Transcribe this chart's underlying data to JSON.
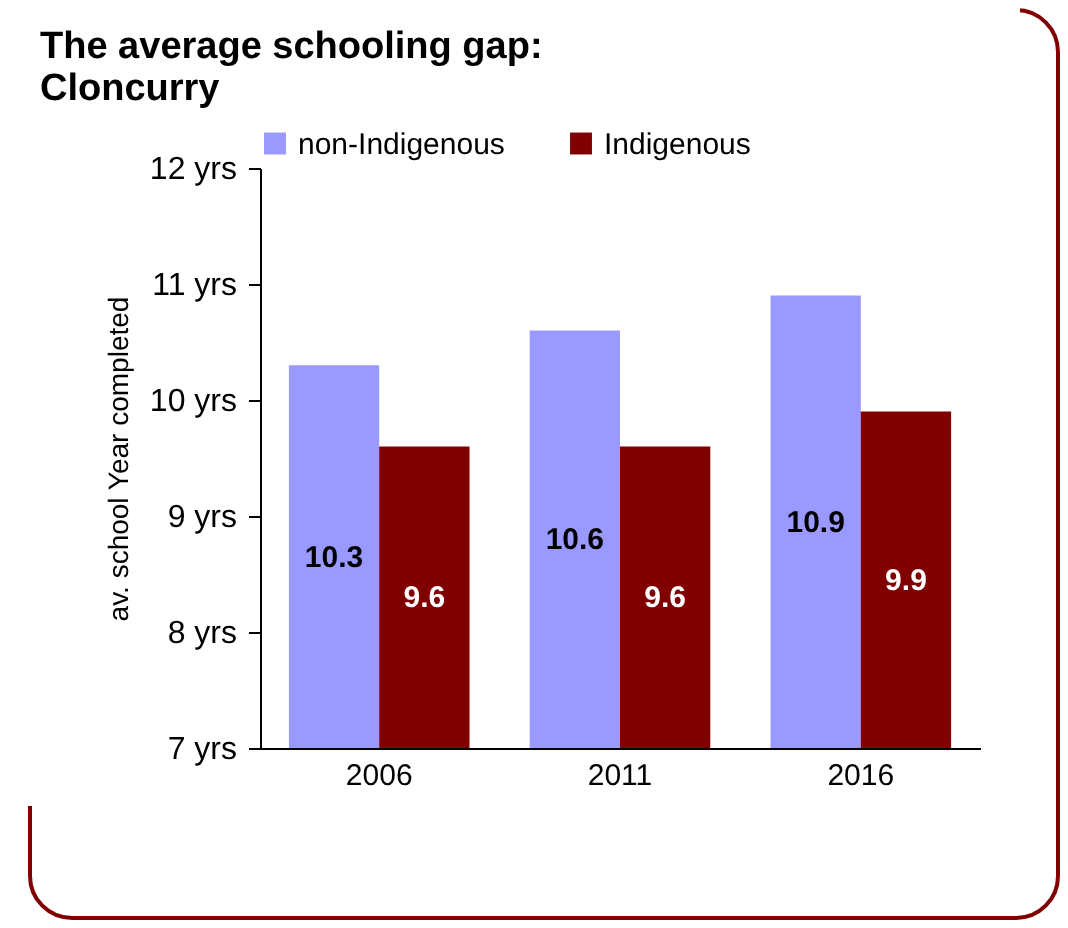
{
  "chart_data": {
    "type": "bar",
    "title": "The average schooling gap:",
    "subtitle": "Cloncurry",
    "ylabel": "av. school Year completed",
    "categories": [
      "2006",
      "2011",
      "2016"
    ],
    "series": [
      {
        "name": "non-Indigenous",
        "color": "#9999ff",
        "values": [
          10.3,
          10.6,
          10.9
        ]
      },
      {
        "name": "Indigenous",
        "color": "#800000",
        "values": [
          9.6,
          9.6,
          9.9
        ]
      }
    ],
    "ylim": [
      7,
      12
    ],
    "yticks": [
      {
        "value": 7,
        "label": "7 yrs"
      },
      {
        "value": 8,
        "label": "8 yrs"
      },
      {
        "value": 9,
        "label": "9 yrs"
      },
      {
        "value": 10,
        "label": "10 yrs"
      },
      {
        "value": 11,
        "label": "11 yrs"
      },
      {
        "value": 12,
        "label": "12 yrs"
      }
    ],
    "data_labels": true,
    "legend": "top",
    "grid": false
  }
}
